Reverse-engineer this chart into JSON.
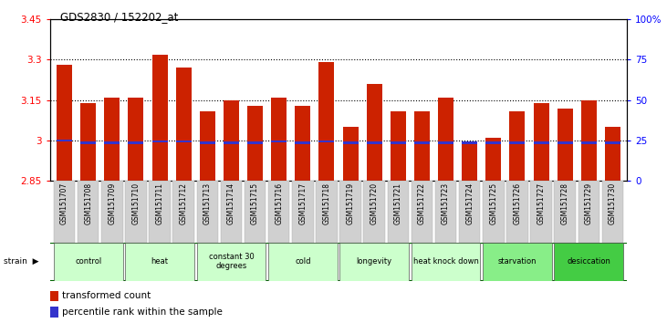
{
  "title": "GDS2830 / 152202_at",
  "samples": [
    "GSM151707",
    "GSM151708",
    "GSM151709",
    "GSM151710",
    "GSM151711",
    "GSM151712",
    "GSM151713",
    "GSM151714",
    "GSM151715",
    "GSM151716",
    "GSM151717",
    "GSM151718",
    "GSM151719",
    "GSM151720",
    "GSM151721",
    "GSM151722",
    "GSM151723",
    "GSM151724",
    "GSM151725",
    "GSM151726",
    "GSM151727",
    "GSM151728",
    "GSM151729",
    "GSM151730"
  ],
  "bar_values": [
    3.28,
    3.14,
    3.16,
    3.16,
    3.32,
    3.27,
    3.11,
    3.15,
    3.13,
    3.16,
    3.13,
    3.29,
    3.05,
    3.21,
    3.11,
    3.11,
    3.16,
    2.99,
    3.01,
    3.11,
    3.14,
    3.12,
    3.15,
    3.05
  ],
  "blue_marker_pos": [
    2.995,
    2.988,
    2.988,
    2.988,
    2.992,
    2.992,
    2.988,
    2.988,
    2.988,
    2.992,
    2.988,
    2.992,
    2.988,
    2.988,
    2.988,
    2.988,
    2.988,
    2.988,
    2.988,
    2.988,
    2.988,
    2.988,
    2.988,
    2.988
  ],
  "bar_color": "#cc2200",
  "blue_color": "#3333cc",
  "ymin": 2.85,
  "ymax": 3.45,
  "yticks": [
    2.85,
    3.0,
    3.15,
    3.3,
    3.45
  ],
  "ytick_labels": [
    "2.85",
    "3",
    "3.15",
    "3.3",
    "3.45"
  ],
  "y2ticks": [
    0,
    25,
    50,
    75,
    100
  ],
  "y2tick_labels": [
    "0",
    "25",
    "50",
    "75",
    "100%"
  ],
  "grid_lines": [
    3.0,
    3.15,
    3.3
  ],
  "groups": [
    {
      "label": "control",
      "start": 0,
      "end": 2,
      "color": "#ccffcc"
    },
    {
      "label": "heat",
      "start": 3,
      "end": 5,
      "color": "#ccffcc"
    },
    {
      "label": "constant 30\ndegrees",
      "start": 6,
      "end": 8,
      "color": "#ccffcc"
    },
    {
      "label": "cold",
      "start": 9,
      "end": 11,
      "color": "#ccffcc"
    },
    {
      "label": "longevity",
      "start": 12,
      "end": 14,
      "color": "#ccffcc"
    },
    {
      "label": "heat knock down",
      "start": 15,
      "end": 17,
      "color": "#ccffcc"
    },
    {
      "label": "starvation",
      "start": 18,
      "end": 20,
      "color": "#88ee88"
    },
    {
      "label": "desiccation",
      "start": 21,
      "end": 23,
      "color": "#44cc44"
    }
  ],
  "bg_color": "#ffffff",
  "tick_label_bg": "#d0d0d0"
}
